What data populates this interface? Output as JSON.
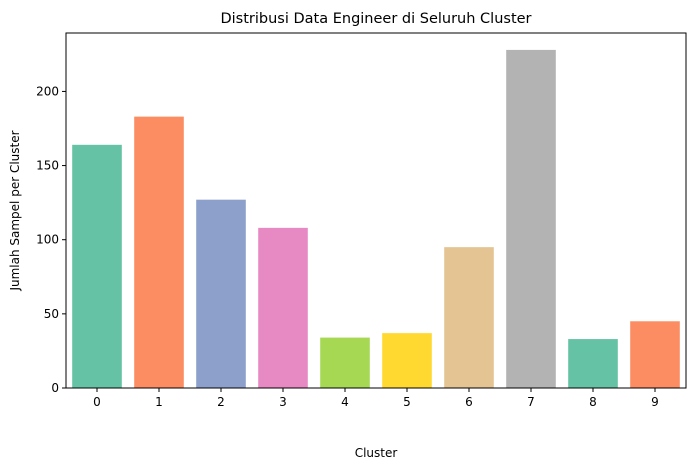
{
  "chart_data": {
    "type": "bar",
    "title": "Distribusi Data Engineer di Seluruh Cluster",
    "xlabel": "Cluster",
    "ylabel": "Jumlah Sampel per Cluster",
    "categories": [
      "0",
      "1",
      "2",
      "3",
      "4",
      "5",
      "6",
      "7",
      "8",
      "9"
    ],
    "values": [
      164,
      183,
      127,
      108,
      34,
      37,
      95,
      228,
      33,
      45
    ],
    "colors": [
      "#66c2a5",
      "#fc8d62",
      "#8da0cb",
      "#e78ac3",
      "#a6d854",
      "#ffd92f",
      "#e5c494",
      "#b3b3b3",
      "#66c2a5",
      "#fc8d62"
    ],
    "yticks": [
      0,
      50,
      100,
      150,
      200
    ],
    "ylim": [
      0,
      239.4
    ],
    "grid": false,
    "legend": "none"
  }
}
